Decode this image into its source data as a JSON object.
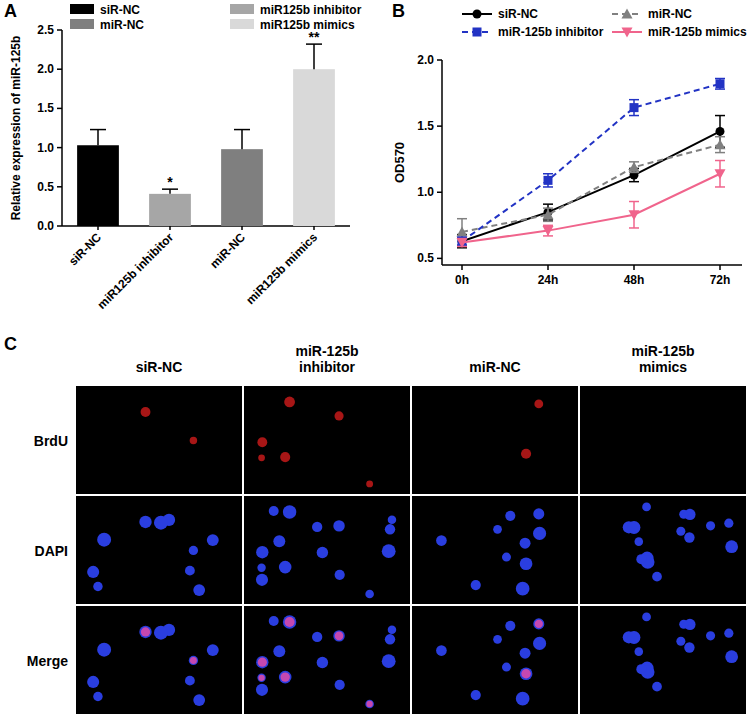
{
  "chart_data": [
    {
      "type": "bar",
      "panel": "A",
      "y_label": "Relative  expression of miR-125b",
      "categories": [
        "siR-NC",
        "miR125b inhibitor",
        "miR-NC",
        "miR125b mimics"
      ],
      "values": [
        1.03,
        0.41,
        0.98,
        2.0
      ],
      "errors": [
        0.2,
        0.06,
        0.25,
        0.32
      ],
      "significance": [
        null,
        "*",
        null,
        "**"
      ],
      "colors": [
        "#000000",
        "#a6a6a6",
        "#7f7f7f",
        "#d9d9d9"
      ],
      "ylim": [
        0,
        2.5
      ],
      "yticks": [
        {
          "value": 0,
          "label": "0.0"
        },
        0.5,
        {
          "value": 1,
          "label": "1.0"
        },
        1.5,
        {
          "value": 2,
          "label": "2.0"
        },
        2.5
      ],
      "legend": "top",
      "grid": false
    },
    {
      "type": "line",
      "panel": "B",
      "y_label": "OD570",
      "categories": [
        "0h",
        "24h",
        "48h",
        "72h"
      ],
      "series": [
        {
          "name": "siR-NC",
          "color": "#000000",
          "marker": "circle",
          "line_style": "solid",
          "values": [
            0.63,
            0.85,
            1.13,
            1.46
          ],
          "errors": [
            0.05,
            0.06,
            0.05,
            0.12
          ]
        },
        {
          "name": "miR-NC",
          "color": "#808080",
          "marker": "triangle",
          "line_style": "dashed",
          "values": [
            0.7,
            0.83,
            1.19,
            1.36
          ],
          "errors": [
            0.1,
            0.05,
            0.04,
            0.06
          ]
        },
        {
          "name": "miR-125b inhibitor",
          "color": "#2233c4",
          "marker": "square",
          "line_style": "dashed",
          "values": [
            0.63,
            1.09,
            1.64,
            1.82
          ],
          "errors": [
            0.03,
            0.05,
            0.06,
            0.04
          ]
        },
        {
          "name": "miR-125b mimics",
          "color": "#f0648c",
          "marker": "triangle-down",
          "line_style": "solid",
          "values": [
            0.62,
            0.71,
            0.83,
            1.14
          ],
          "errors": [
            0.03,
            0.04,
            0.1,
            0.1
          ]
        }
      ],
      "ylim": [
        0.45,
        2.0
      ],
      "yticks": [
        0.5,
        {
          "value": 1,
          "label": "1.0"
        },
        1.5,
        {
          "value": 2,
          "label": "2.0"
        }
      ],
      "legend": "top",
      "grid": false
    }
  ],
  "panel_c": {
    "panel": "C",
    "rows": [
      "BrdU",
      "DAPI",
      "Merge"
    ],
    "columns": [
      "siR-NC",
      "miR-125b inhibitor",
      "miR-NC",
      "miR-125b mimics"
    ]
  }
}
